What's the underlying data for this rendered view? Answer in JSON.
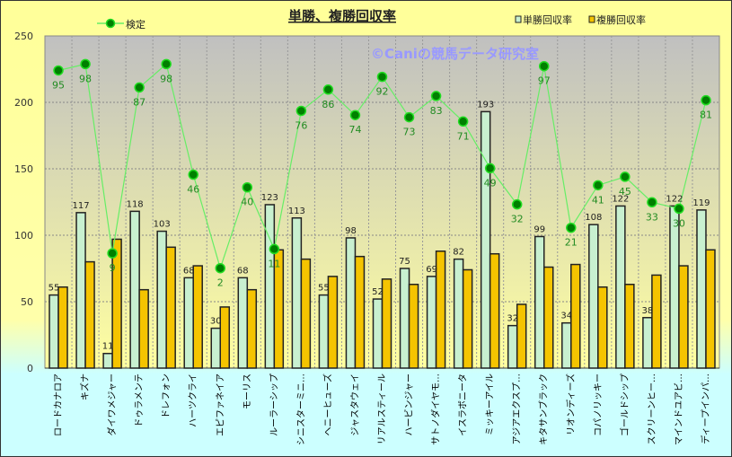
{
  "chart_data": {
    "type": "bar",
    "title": "単勝、複勝回収率",
    "watermark": "©Caniの競馬データ研究室",
    "ylim": [
      0,
      250
    ],
    "yticks": [
      0,
      50,
      100,
      150,
      200,
      250
    ],
    "grid": true,
    "categories": [
      "ロードカナロア",
      "キズナ",
      "ダイワメジャー",
      "ドゥラメンテ",
      "ドレフォン",
      "ハーツクライ",
      "エピファネイア",
      "モーリス",
      "ルーラーシップ",
      "シニスターミニ…",
      "ヘニーヒューズ",
      "ジャスタウェイ",
      "リアルスティール",
      "ハービンジャー",
      "サトノダイヤモ…",
      "イスラボニータ",
      "ミッキーアイル",
      "アジアエクスプ…",
      "キタサンブラック",
      "リオンディーズ",
      "コパノリッキー",
      "ゴールドシップ",
      "スクリーンヒー…",
      "マインドユアビ…",
      "ディープインパ…"
    ],
    "series": [
      {
        "name": "単勝回収率",
        "type": "bar",
        "color": "#c8f0d0",
        "values": [
          55,
          117,
          11,
          118,
          103,
          68,
          30,
          68,
          123,
          113,
          55,
          98,
          52,
          75,
          69,
          82,
          193,
          32,
          99,
          34,
          108,
          122,
          38,
          122,
          119
        ]
      },
      {
        "name": "複勝回収率",
        "type": "bar",
        "color": "#f5c400",
        "values": [
          61,
          80,
          97,
          59,
          91,
          77,
          46,
          59,
          89,
          82,
          69,
          84,
          67,
          63,
          88,
          74,
          86,
          48,
          76,
          78,
          61,
          63,
          70,
          77,
          89
        ]
      },
      {
        "name": "検定",
        "type": "line",
        "color": "#66ee66",
        "marker_color": "#008000",
        "values": [
          95,
          98,
          9,
          87,
          98,
          46,
          2,
          40,
          11,
          76,
          86,
          74,
          92,
          73,
          83,
          71,
          49,
          32,
          97,
          21,
          41,
          45,
          33,
          30,
          81
        ]
      }
    ],
    "legend": {
      "line_placement": "top-left",
      "bar_placement": "top-right"
    }
  }
}
